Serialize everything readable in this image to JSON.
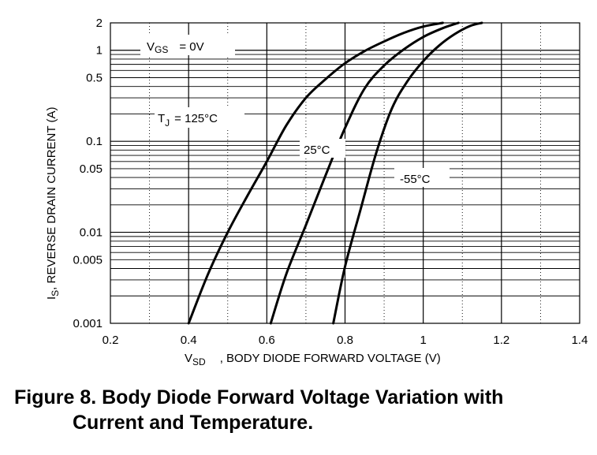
{
  "chart_data": {
    "type": "line",
    "x_scale": "linear",
    "y_scale": "log",
    "xlim": [
      0.2,
      1.4
    ],
    "ylim": [
      0.001,
      2
    ],
    "x_ticks": [
      "0.2",
      "0.4",
      "0.6",
      "0.8",
      "1",
      "1.2",
      "1.4"
    ],
    "x_tick_values": [
      0.2,
      0.4,
      0.6,
      0.8,
      1.0,
      1.2,
      1.4
    ],
    "y_ticks": [
      "0.001",
      "0.005",
      "0.01",
      "0.05",
      "0.1",
      "0.5",
      "1",
      "2"
    ],
    "y_tick_values": [
      0.001,
      0.005,
      0.01,
      0.05,
      0.1,
      0.5,
      1,
      2
    ],
    "xlabel_sym": "V",
    "xlabel_sub": "SD",
    "xlabel_text": ", BODY DIODE FORWARD VOLTAGE (V)",
    "ylabel_sym": "I",
    "ylabel_sub": "S",
    "ylabel_text": ", REVERSE DRAIN CURRENT (A)",
    "grid": true,
    "annotations": {
      "vgs_sym": "V",
      "vgs_sub": "GS",
      "vgs_val": "= 0V",
      "tj_sym": "T",
      "tj_sub": "J",
      "tj_val": "= 125°C"
    },
    "series": [
      {
        "name": "125°C",
        "x": [
          0.4,
          0.45,
          0.5,
          0.55,
          0.6,
          0.65,
          0.7,
          0.75,
          0.8,
          0.85,
          0.9,
          0.95,
          1.0,
          1.05
        ],
        "y": [
          0.001,
          0.0035,
          0.01,
          0.025,
          0.06,
          0.15,
          0.3,
          0.48,
          0.72,
          0.98,
          1.25,
          1.55,
          1.82,
          2.0
        ]
      },
      {
        "name": "25°C",
        "x": [
          0.61,
          0.65,
          0.7,
          0.75,
          0.8,
          0.85,
          0.9,
          0.95,
          1.0,
          1.05,
          1.09
        ],
        "y": [
          0.001,
          0.0035,
          0.012,
          0.042,
          0.14,
          0.38,
          0.68,
          1.02,
          1.4,
          1.75,
          2.0
        ]
      },
      {
        "name": "-55°C",
        "x": [
          0.77,
          0.8,
          0.84,
          0.88,
          0.92,
          0.96,
          1.0,
          1.04,
          1.08,
          1.12,
          1.15
        ],
        "y": [
          0.001,
          0.0042,
          0.018,
          0.075,
          0.23,
          0.46,
          0.76,
          1.12,
          1.5,
          1.85,
          2.0
        ]
      }
    ]
  },
  "caption": {
    "line1": "Figure 8.  Body Diode Forward Voltage Variation with",
    "line2": "Current and Temperature."
  }
}
